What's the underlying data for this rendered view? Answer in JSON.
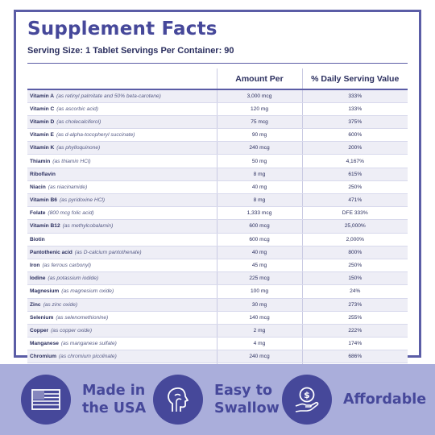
{
  "title": "Supplement Facts",
  "serving": "Serving Size: 1 Tablet Servings Per Container: 90",
  "headers": {
    "nutrient": "",
    "amount": "Amount Per",
    "dv": "% Daily Serving Value"
  },
  "rows": [
    {
      "name": "Vitamin A",
      "source": "(as retinyl palmitate and 50% beta-carotene)",
      "amount": "3,000 mcg",
      "dv": "333%"
    },
    {
      "name": "Vitamin C",
      "source": "(as ascorbic acid)",
      "amount": "120 mg",
      "dv": "133%"
    },
    {
      "name": "Vitamin D",
      "source": "(as cholecalciferol)",
      "amount": "75 mcg",
      "dv": "375%"
    },
    {
      "name": "Vitamin E",
      "source": "(as d-alpha-tocopheryl succinate)",
      "amount": "90 mg",
      "dv": "600%"
    },
    {
      "name": "Vitamin K",
      "source": "(as phylloquinone)",
      "amount": "240 mcg",
      "dv": "200%"
    },
    {
      "name": "Thiamin",
      "source": "(as thiamin HCl)",
      "amount": "50 mg",
      "dv": "4,167%"
    },
    {
      "name": "Riboflavin",
      "source": "",
      "amount": "8 mg",
      "dv": "615%"
    },
    {
      "name": "Niacin",
      "source": "(as niacinamide)",
      "amount": "40 mg",
      "dv": "250%"
    },
    {
      "name": "Vitamin B6",
      "source": "(as pyridoxine HCl)",
      "amount": "8 mg",
      "dv": "471%"
    },
    {
      "name": "Folate",
      "source": "(800 mcg folic acid)",
      "amount": "1,333 mcg",
      "dv": "DFE 333%"
    },
    {
      "name": "Vitamin B12",
      "source": "(as methylcobalamin)",
      "amount": "600 mcg",
      "dv": "25,000%"
    },
    {
      "name": "Biotin",
      "source": "",
      "amount": "600 mcg",
      "dv": "2,000%"
    },
    {
      "name": "Pantothenic acid",
      "source": "(as D-calcium pantothenate)",
      "amount": "40 mg",
      "dv": "800%"
    },
    {
      "name": "Iron",
      "source": "(as ferrous carbonyl)",
      "amount": "45 mg",
      "dv": "250%"
    },
    {
      "name": "Iodine",
      "source": "(as potassium iodide)",
      "amount": "225 mcg",
      "dv": "150%"
    },
    {
      "name": "Magnesium",
      "source": "(as magnesium oxide)",
      "amount": "100 mg",
      "dv": "24%"
    },
    {
      "name": "Zinc",
      "source": "(as zinc oxide)",
      "amount": "30 mg",
      "dv": "273%"
    },
    {
      "name": "Selenium",
      "source": "(as selenomethionine)",
      "amount": "140 mcg",
      "dv": "255%"
    },
    {
      "name": "Copper",
      "source": "(as copper oxide)",
      "amount": "2 mg",
      "dv": "222%"
    },
    {
      "name": "Manganese",
      "source": "(as manganese sulfate)",
      "amount": "4 mg",
      "dv": "174%"
    },
    {
      "name": "Chromium",
      "source": "(as chromium picolinate)",
      "amount": "240 mcg",
      "dv": "686%"
    },
    {
      "name": "Molybdenum",
      "source": "(as sodium molybdate)",
      "amount": "200 mcg",
      "dv": "444%"
    }
  ],
  "features": [
    {
      "icon": "usa-flag-icon",
      "line1": "Made in",
      "line2": "the USA"
    },
    {
      "icon": "head-throat-icon",
      "line1": "Easy to",
      "line2": "Swallow"
    },
    {
      "icon": "dollar-hand-icon",
      "line1": "Affordable",
      "line2": ""
    }
  ],
  "colors": {
    "accent": "#46489a",
    "band": "#aaaedb",
    "border": "#5b5da6",
    "stripe": "#eeeef6"
  }
}
